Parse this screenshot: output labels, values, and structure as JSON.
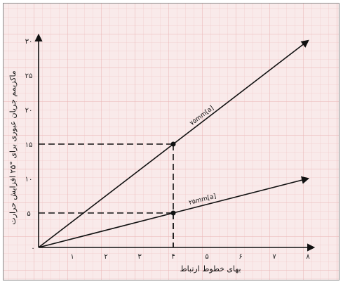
{
  "chart_data": {
    "type": "line",
    "xlabel": "بهای خطوط ارتباط",
    "ylabel": "ماکزیمم جریان عبوری برای °۲۵ افزایش حرارت",
    "xlim": [
      0,
      8
    ],
    "ylim": [
      0,
      30
    ],
    "x_ticks": [
      "۱",
      "۲",
      "۳",
      "۴",
      "۵",
      "۶",
      "۷",
      "۸"
    ],
    "y_ticks": [
      "۵",
      "۱۰",
      "۱۵",
      "۲۰",
      "۲۵",
      "۳۰"
    ],
    "origin_label": "۰",
    "series": [
      {
        "label": "۷۵mm[a]",
        "x": [
          0,
          8
        ],
        "y": [
          0,
          30
        ]
      },
      {
        "label": "۲۵mm[a]",
        "x": [
          0,
          8
        ],
        "y": [
          0,
          10
        ]
      }
    ],
    "reference_points": [
      {
        "x": 4,
        "y": 15
      },
      {
        "x": 4,
        "y": 5
      }
    ],
    "grid": true
  }
}
